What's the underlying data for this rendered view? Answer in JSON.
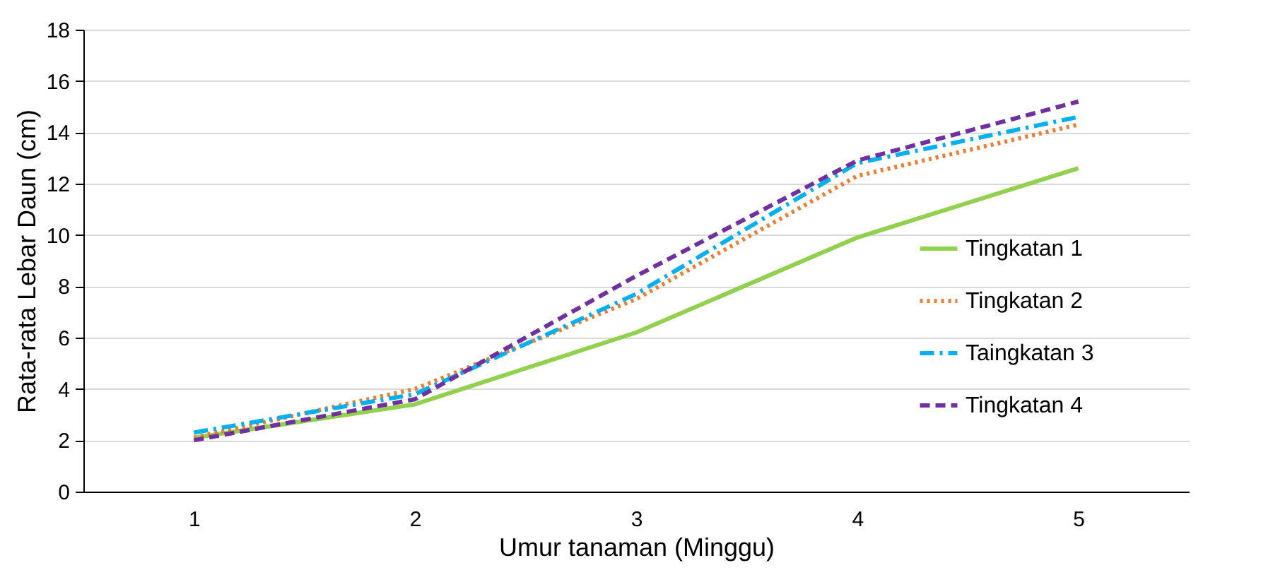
{
  "chart_data": {
    "type": "line",
    "xlabel": "Umur tanaman (Minggu)",
    "ylabel": "Rata-rata Lebar Daun (cm)",
    "categories": [
      "1",
      "2",
      "3",
      "4",
      "5"
    ],
    "series": [
      {
        "name": "Tingkatan 1",
        "color": "#92d050",
        "line_style": "solid",
        "values": [
          2.1,
          3.4,
          6.2,
          9.9,
          12.6
        ]
      },
      {
        "name": "Tingkatan 2",
        "color": "#ed7d31",
        "line_style": "dotted",
        "values": [
          2.1,
          4.0,
          7.5,
          12.3,
          14.3
        ]
      },
      {
        "name": "Taingkatan 3",
        "color": "#00b0f0",
        "line_style": "dashdot",
        "values": [
          2.3,
          3.8,
          7.7,
          12.8,
          14.6
        ]
      },
      {
        "name": "Tingkatan 4",
        "color": "#7030a0",
        "line_style": "dashed",
        "values": [
          2.0,
          3.6,
          8.4,
          12.9,
          15.2
        ]
      }
    ],
    "ylim": [
      0,
      18
    ],
    "yticks": [
      0,
      2,
      4,
      6,
      8,
      10,
      12,
      14,
      16,
      18
    ],
    "grid": "y",
    "legend": "right",
    "marker": "none"
  }
}
